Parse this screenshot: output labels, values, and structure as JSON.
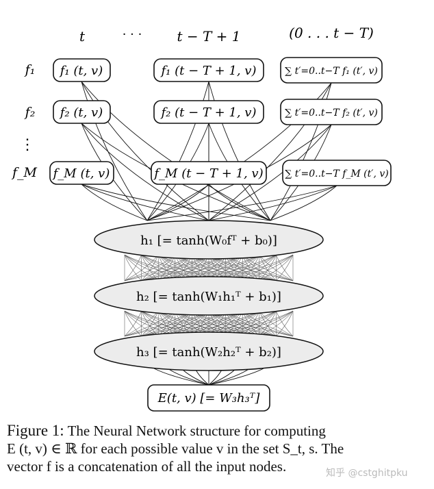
{
  "columns": [
    "t",
    "· · ·",
    "t − T + 1",
    "(0 . . . t − T)"
  ],
  "rows": [
    "f₁",
    "f₂",
    "⋮",
    "f_M"
  ],
  "nodes": {
    "r1": [
      "f₁ (t, v)",
      "f₁ (t − T + 1, v)",
      "∑ t′=0..t−T f₁ (t′, v)"
    ],
    "r2": [
      "f₂ (t, v)",
      "f₂ (t − T + 1, v)",
      "∑ t′=0..t−T f₂ (t′, v)"
    ],
    "rM": [
      "f_M (t, v)",
      "f_M (t − T + 1, v)",
      "∑ t′=0..t−T f_M (t′, v)"
    ]
  },
  "hidden": [
    "h₁ [= tanh(W₀fᵀ + b₀)]",
    "h₂ [= tanh(W₁h₁ᵀ + b₁)]",
    "h₃ [= tanh(W₂h₂ᵀ + b₂)]"
  ],
  "output": "E(t, v) [= W₃h₃ᵀ]",
  "caption": {
    "label": "Figure 1:",
    "line1": "The Neural Network structure for computing",
    "line2": "E (t, v) ∈ ℝ for each possible value v in the set S_t, s. The",
    "line3": "vector f is a concatenation of all the input nodes."
  },
  "watermark": "知乎 @cstghitpku",
  "colors": {
    "line": "#111111",
    "ellipse_fill": "#ececec",
    "mesh": "#555555"
  }
}
